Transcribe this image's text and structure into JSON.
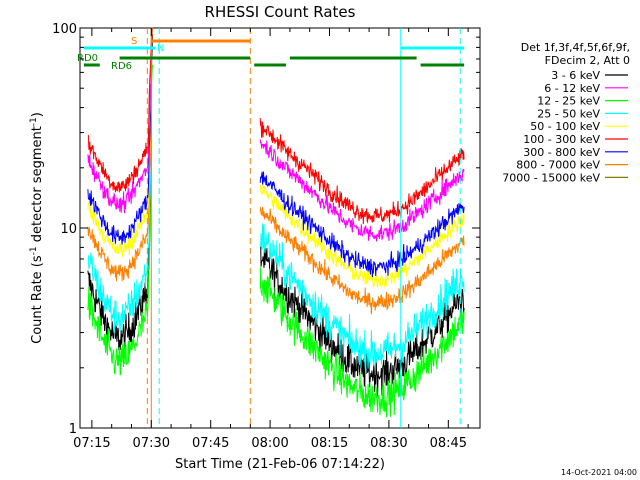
{
  "chart_data": {
    "type": "line",
    "title": "RHESSI Count Rates",
    "xlabel": "Start Time (21-Feb-06 07:14:22)",
    "ylabel_main": "Count Rate (s",
    "ylabel_sup1": "-1",
    "ylabel_mid": " detector segment",
    "ylabel_sup2": "-1",
    "ylabel_end": ")",
    "y_scale": "log",
    "ylim": [
      1,
      100
    ],
    "xlim": [
      "07:12",
      "08:53"
    ],
    "x_ticks": [
      "07:15",
      "07:30",
      "07:45",
      "08:00",
      "08:15",
      "08:30",
      "08:45"
    ],
    "y_ticks": [
      "1",
      "10",
      "100"
    ],
    "legend_header": [
      "Det 1f,3f,4f,5f,6f,9f,",
      "FDecim 2, Att 0"
    ],
    "legend_placement": "right",
    "series": [
      {
        "name": "3 - 6 keV",
        "color": "#000000",
        "level": 5.5
      },
      {
        "name": "6 - 12 keV",
        "color": "#ff00ff",
        "level": 22
      },
      {
        "name": "12 - 25 keV",
        "color": "#00ff00",
        "level": 4.2
      },
      {
        "name": "25 - 50 keV",
        "color": "#00ffff",
        "level": 7.0
      },
      {
        "name": "50 - 100 keV",
        "color": "#ffff00",
        "level": 13
      },
      {
        "name": "100 - 300 keV",
        "color": "#ff0000",
        "level": 27
      },
      {
        "name": "300 - 800 keV",
        "color": "#0000ff",
        "level": 15
      },
      {
        "name": "800 - 7000 keV",
        "color": "#ff8000",
        "level": 10
      },
      {
        "name": "7000 - 15000 keV",
        "color": "#808000",
        "level": 0
      }
    ],
    "flags": [
      {
        "label": "S",
        "color": "#ff8000"
      },
      {
        "label": "N",
        "color": "#00ffff"
      },
      {
        "label": "RD0",
        "color": "#008000"
      },
      {
        "label": "RD6",
        "color": "#008000"
      }
    ],
    "vertical_markers": [
      {
        "time": "07:29",
        "color": "#ff8000",
        "style": "dashed"
      },
      {
        "time": "07:30",
        "color": "#ff8000",
        "style": "solid"
      },
      {
        "time": "07:32",
        "color": "#00ffff",
        "style": "dashed"
      },
      {
        "time": "07:55",
        "color": "#ff8000",
        "style": "dashed"
      },
      {
        "time": "08:33",
        "color": "#00ffff",
        "style": "solid"
      },
      {
        "time": "08:48",
        "color": "#00ffff",
        "style": "dashed"
      }
    ]
  },
  "footer": {
    "timestamp": "14-Oct-2021 04:00"
  }
}
